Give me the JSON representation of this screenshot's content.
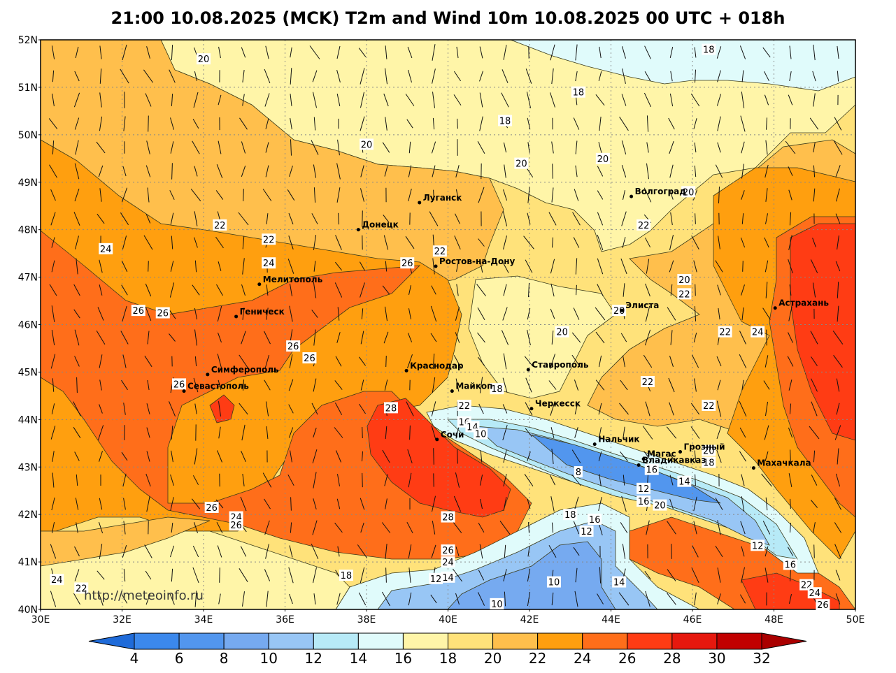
{
  "title": "21:00 10.08.2025 (MCK) T2m and Wind 10m 10.08.2025 00 UTC + 018h",
  "watermark": "http://meteoinfo.ru",
  "lat_labels": [
    "52N",
    "51N",
    "50N",
    "49N",
    "48N",
    "47N",
    "46N",
    "45N",
    "44N",
    "43N",
    "42N",
    "41N",
    "40N"
  ],
  "lon_labels": [
    "30E",
    "32E",
    "34E",
    "36E",
    "38E",
    "40E",
    "42E",
    "44E",
    "46E",
    "48E",
    "50E"
  ],
  "colorbar": {
    "ticks": [
      "4",
      "6",
      "8",
      "10",
      "12",
      "14",
      "16",
      "18",
      "20",
      "22",
      "24",
      "26",
      "28",
      "30",
      "32"
    ],
    "colors": [
      "#2a7ae6",
      "#3b88ec",
      "#5296ee",
      "#76aaf0",
      "#98c6f5",
      "#b7eaf7",
      "#e0fbfb",
      "#fff5a8",
      "#ffe27a",
      "#ffbf4c",
      "#ff9f0f",
      "#ff6e1a",
      "#ff3c14",
      "#e6180e",
      "#c10000"
    ],
    "low_color": "#1f6bd9",
    "high_color": "#aa0000"
  },
  "cities": [
    {
      "name": "Луганск",
      "lon": 39.3,
      "lat": 48.57
    },
    {
      "name": "Донецк",
      "lon": 37.8,
      "lat": 48.0
    },
    {
      "name": "Волгоград",
      "lon": 44.5,
      "lat": 48.7
    },
    {
      "name": "Ростов-на-Дону",
      "lon": 39.7,
      "lat": 47.23
    },
    {
      "name": "Мелитополь",
      "lon": 35.37,
      "lat": 46.85
    },
    {
      "name": "Геническ",
      "lon": 34.8,
      "lat": 46.17
    },
    {
      "name": "Элиста",
      "lon": 44.27,
      "lat": 46.3
    },
    {
      "name": "Астрахань",
      "lon": 48.03,
      "lat": 46.35
    },
    {
      "name": "Краснодар",
      "lon": 38.98,
      "lat": 45.03
    },
    {
      "name": "Симферополь",
      "lon": 34.1,
      "lat": 44.95
    },
    {
      "name": "Ставрополь",
      "lon": 41.97,
      "lat": 45.05
    },
    {
      "name": "Майкоп",
      "lon": 40.1,
      "lat": 44.6
    },
    {
      "name": "Севастополь",
      "lon": 33.52,
      "lat": 44.6
    },
    {
      "name": "Черкесск",
      "lon": 42.05,
      "lat": 44.23
    },
    {
      "name": "Сочи",
      "lon": 39.73,
      "lat": 43.58
    },
    {
      "name": "Нальчик",
      "lon": 43.6,
      "lat": 43.48
    },
    {
      "name": "Магас",
      "lon": 44.8,
      "lat": 43.17
    },
    {
      "name": "Грозный",
      "lon": 45.7,
      "lat": 43.32
    },
    {
      "name": "Владикавказ",
      "lon": 44.68,
      "lat": 43.04
    },
    {
      "name": "Махачкала",
      "lon": 47.5,
      "lat": 42.98
    }
  ],
  "contour_labels": [
    {
      "t": "20",
      "lon": 34.0,
      "lat": 51.6
    },
    {
      "t": "18",
      "lon": 46.4,
      "lat": 51.8
    },
    {
      "t": "18",
      "lon": 43.2,
      "lat": 50.9
    },
    {
      "t": "18",
      "lon": 41.4,
      "lat": 50.3
    },
    {
      "t": "20",
      "lon": 38.0,
      "lat": 49.8
    },
    {
      "t": "20",
      "lon": 41.8,
      "lat": 49.4
    },
    {
      "t": "20",
      "lon": 43.8,
      "lat": 49.5
    },
    {
      "t": "20",
      "lon": 45.9,
      "lat": 48.8
    },
    {
      "t": "22",
      "lon": 34.4,
      "lat": 48.1
    },
    {
      "t": "22",
      "lon": 44.8,
      "lat": 48.1
    },
    {
      "t": "24",
      "lon": 31.6,
      "lat": 47.6
    },
    {
      "t": "22",
      "lon": 35.6,
      "lat": 47.8
    },
    {
      "t": "22",
      "lon": 39.8,
      "lat": 47.55
    },
    {
      "t": "24",
      "lon": 35.6,
      "lat": 47.3
    },
    {
      "t": "26",
      "lon": 39.0,
      "lat": 47.3
    },
    {
      "t": "20",
      "lon": 45.8,
      "lat": 46.95
    },
    {
      "t": "22",
      "lon": 45.8,
      "lat": 46.65
    },
    {
      "t": "26",
      "lon": 32.4,
      "lat": 46.3
    },
    {
      "t": "26",
      "lon": 33.0,
      "lat": 46.25
    },
    {
      "t": "20",
      "lon": 44.2,
      "lat": 46.3
    },
    {
      "t": "20",
      "lon": 42.8,
      "lat": 45.85
    },
    {
      "t": "22",
      "lon": 46.8,
      "lat": 45.85
    },
    {
      "t": "24",
      "lon": 47.6,
      "lat": 45.85
    },
    {
      "t": "26",
      "lon": 36.2,
      "lat": 45.55
    },
    {
      "t": "26",
      "lon": 36.6,
      "lat": 45.3
    },
    {
      "t": "26",
      "lon": 33.4,
      "lat": 44.75
    },
    {
      "t": "22",
      "lon": 44.9,
      "lat": 44.8
    },
    {
      "t": "18",
      "lon": 41.2,
      "lat": 44.65
    },
    {
      "t": "22",
      "lon": 40.4,
      "lat": 44.3
    },
    {
      "t": "22",
      "lon": 46.4,
      "lat": 44.3
    },
    {
      "t": "28",
      "lon": 38.6,
      "lat": 44.25
    },
    {
      "t": "16",
      "lon": 40.4,
      "lat": 43.95
    },
    {
      "t": "14",
      "lon": 40.6,
      "lat": 43.85
    },
    {
      "t": "10",
      "lon": 40.8,
      "lat": 43.7
    },
    {
      "t": "20",
      "lon": 46.4,
      "lat": 43.35
    },
    {
      "t": "18",
      "lon": 46.4,
      "lat": 43.1
    },
    {
      "t": "8",
      "lon": 43.2,
      "lat": 42.9
    },
    {
      "t": "16",
      "lon": 45.0,
      "lat": 42.95
    },
    {
      "t": "14",
      "lon": 45.8,
      "lat": 42.7
    },
    {
      "t": "12",
      "lon": 44.8,
      "lat": 42.55
    },
    {
      "t": "16",
      "lon": 44.8,
      "lat": 42.28
    },
    {
      "t": "20",
      "lon": 45.2,
      "lat": 42.2
    },
    {
      "t": "26",
      "lon": 34.2,
      "lat": 42.15
    },
    {
      "t": "24",
      "lon": 34.8,
      "lat": 41.95
    },
    {
      "t": "26",
      "lon": 34.8,
      "lat": 41.78
    },
    {
      "t": "28",
      "lon": 40.0,
      "lat": 41.95
    },
    {
      "t": "18",
      "lon": 43.0,
      "lat": 42.0
    },
    {
      "t": "16",
      "lon": 43.6,
      "lat": 41.9
    },
    {
      "t": "12",
      "lon": 43.4,
      "lat": 41.65
    },
    {
      "t": "12",
      "lon": 47.6,
      "lat": 41.35
    },
    {
      "t": "26",
      "lon": 40.0,
      "lat": 41.25
    },
    {
      "t": "24",
      "lon": 40.0,
      "lat": 41.0
    },
    {
      "t": "16",
      "lon": 48.4,
      "lat": 40.95
    },
    {
      "t": "18",
      "lon": 37.5,
      "lat": 40.72
    },
    {
      "t": "12",
      "lon": 39.7,
      "lat": 40.65
    },
    {
      "t": "14",
      "lon": 40.0,
      "lat": 40.68
    },
    {
      "t": "10",
      "lon": 42.6,
      "lat": 40.58
    },
    {
      "t": "14",
      "lon": 44.2,
      "lat": 40.58
    },
    {
      "t": "24",
      "lon": 30.4,
      "lat": 40.63
    },
    {
      "t": "22",
      "lon": 31.0,
      "lat": 40.45
    },
    {
      "t": "22",
      "lon": 48.8,
      "lat": 40.52
    },
    {
      "t": "24",
      "lon": 49.0,
      "lat": 40.35
    },
    {
      "t": "10",
      "lon": 41.2,
      "lat": 40.12
    },
    {
      "t": "26",
      "lon": 49.2,
      "lat": 40.1
    }
  ]
}
